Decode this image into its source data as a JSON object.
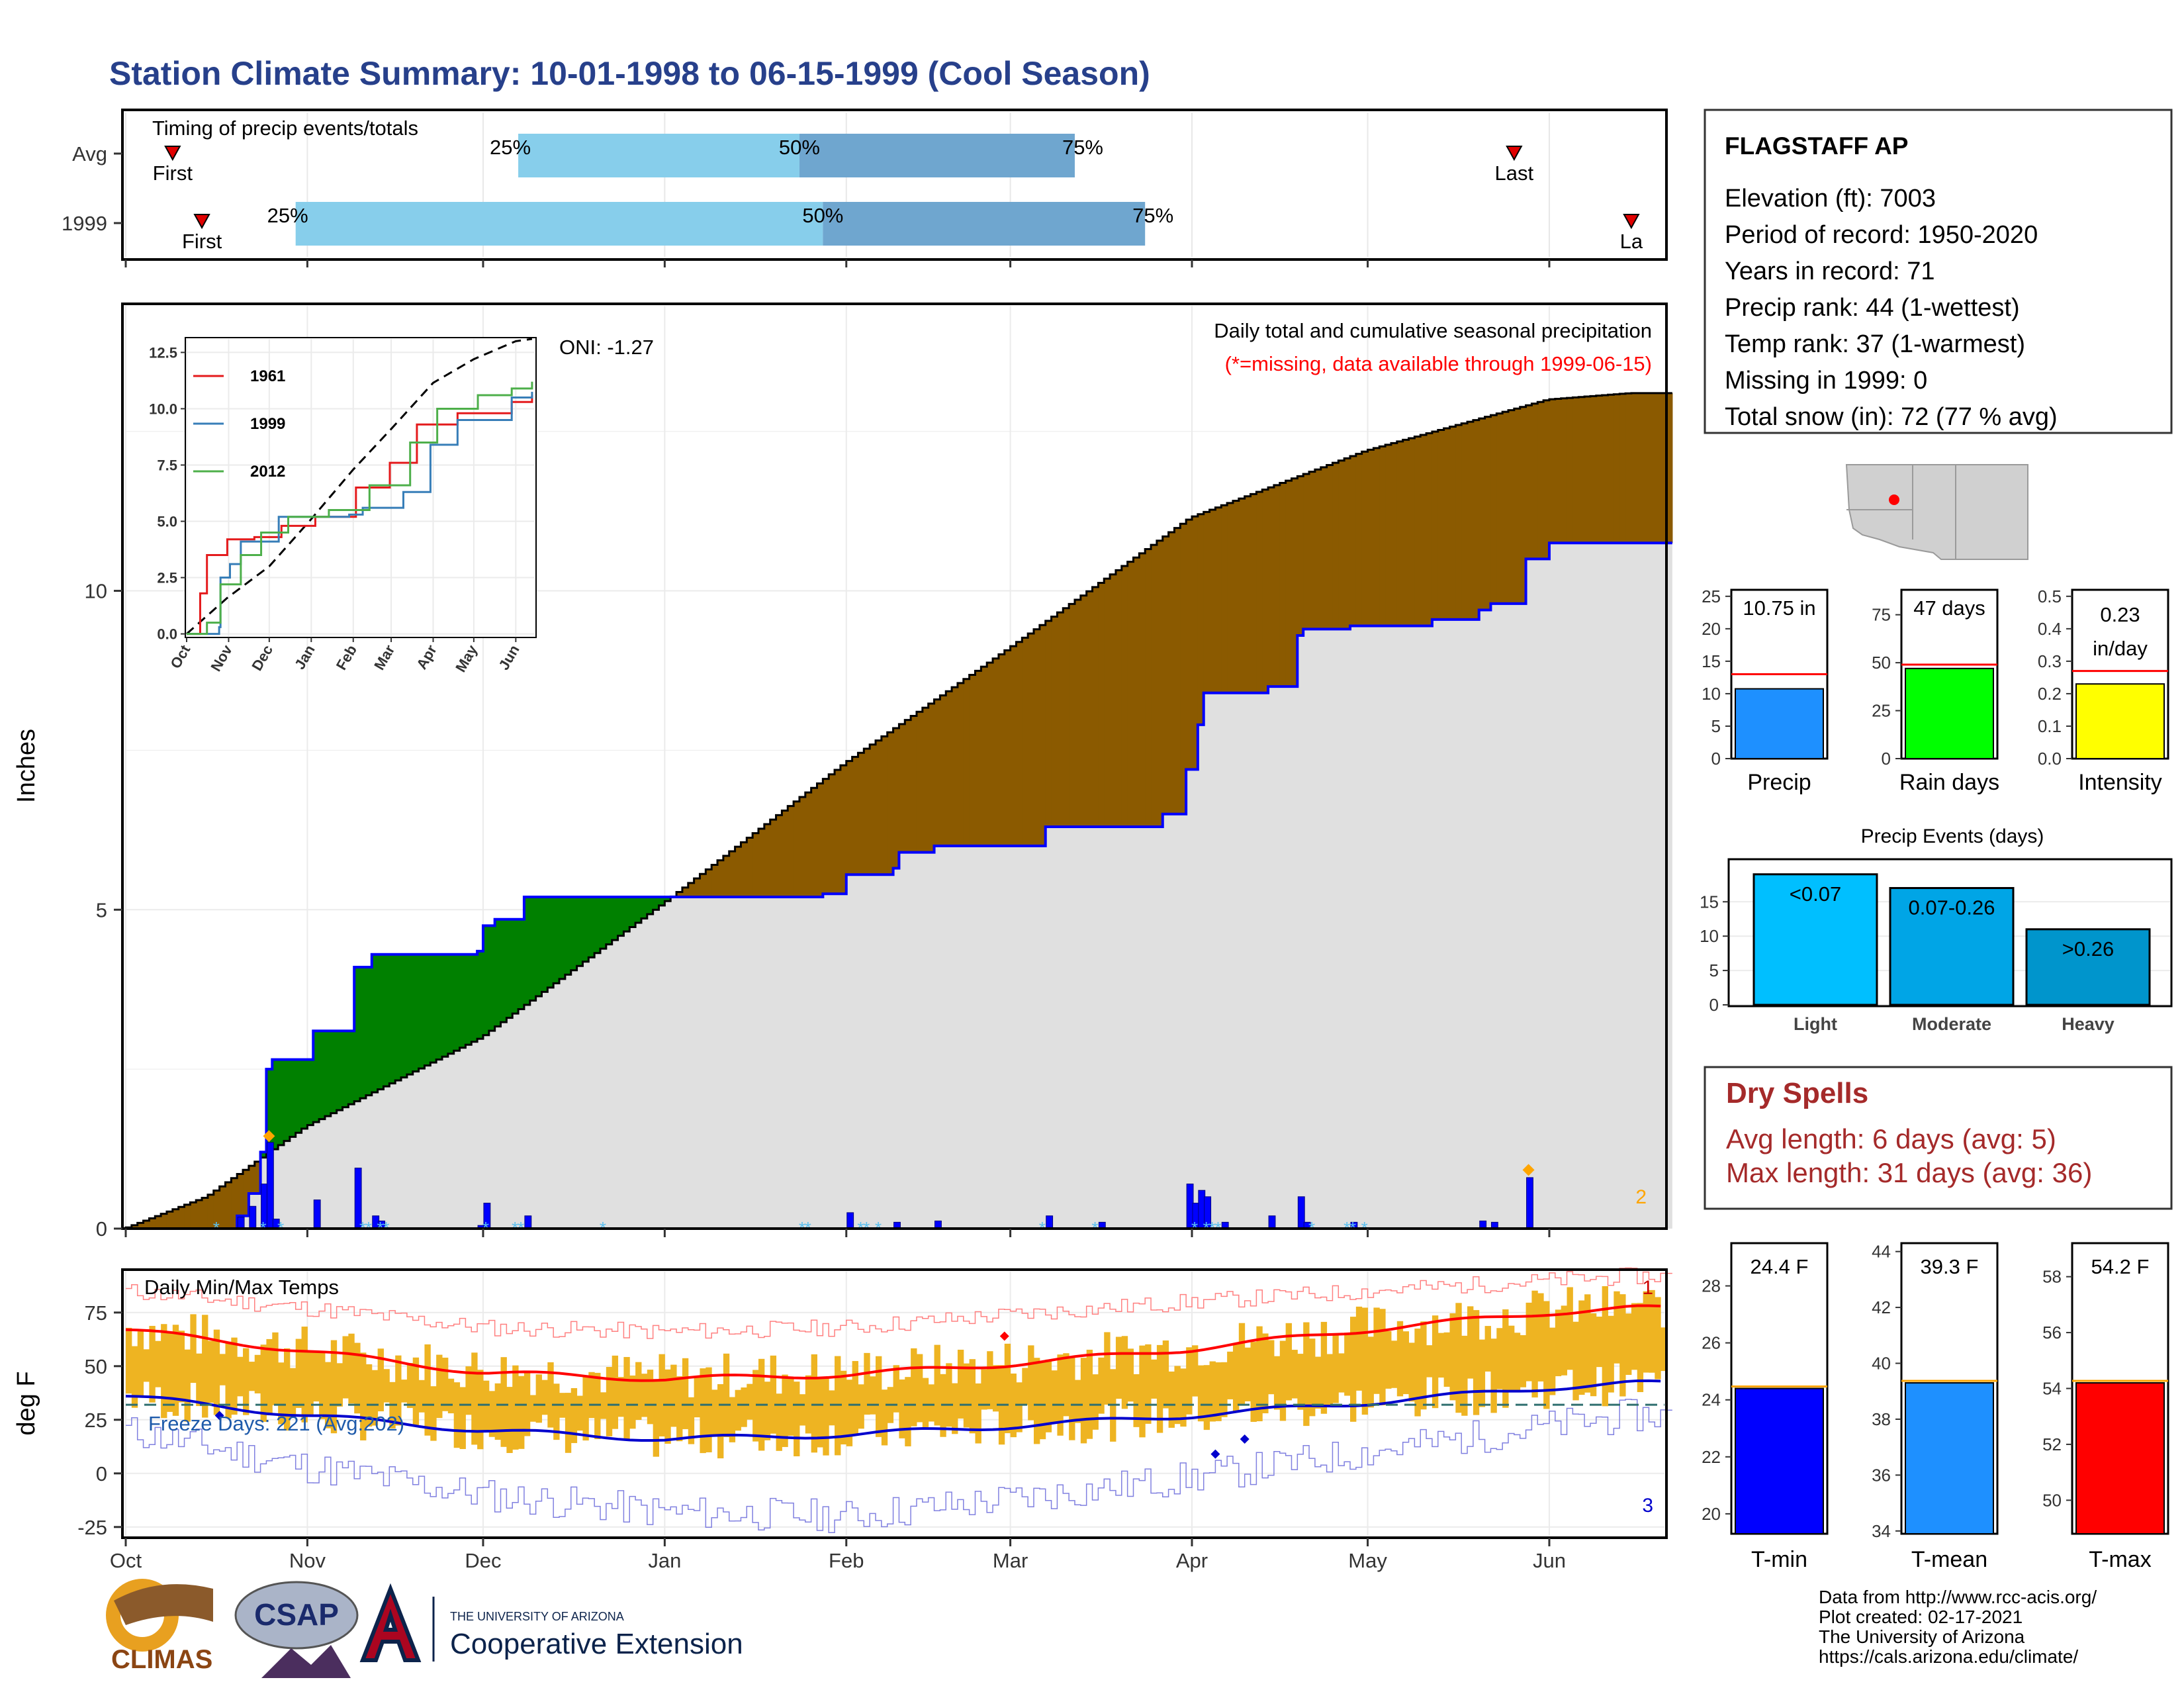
{
  "title": "Station Climate Summary: 10-01-1998 to 06-15-1999 (Cool Season)",
  "colors": {
    "title": "#27408B",
    "rank_bar_light": "#87CEEB",
    "rank_bar_dark": "#6FA6CF",
    "cum_current": "#E0E0E0",
    "cum_line": "#0000FF",
    "wet_fill": "#008000",
    "dry_fill": "#8B5A00",
    "daily_bar": "#0000FF",
    "bar_orange": "#FFA500",
    "temp_bar": "#EEB422",
    "tmax_line": "#FF0000",
    "tmin_line": "#0000CD",
    "dry_title": "#A52A2A"
  },
  "timing": {
    "title": "Timing of precip events/totals",
    "rows": [
      {
        "label": "Avg",
        "first_label": "First",
        "first_date": "1998-10-09",
        "last_label": "Last",
        "last_date": "1999-05-26",
        "q25": "1998-12-07",
        "q50": "1999-01-24",
        "q75": "1999-03-12",
        "q25_label": "25%",
        "q50_label": "50%",
        "q75_label": "75%"
      },
      {
        "label": "1999",
        "first_label": "First",
        "first_date": "1998-10-14",
        "last_label": "La",
        "last_date": "1999-06-15",
        "q25": "1998-10-30",
        "q50": "1999-01-28",
        "q75": "1999-03-24",
        "q25_label": "25%",
        "q50_label": "50%",
        "q75_label": "75%"
      }
    ]
  },
  "main_chart": {
    "type": "area",
    "subtitle": "Daily total and cumulative seasonal precipitation",
    "missing_note": "(*=missing, data available through 1999-06-15)",
    "oni": "ONI: -1.27",
    "ylabel": "Inches",
    "ylim": [
      0,
      14.5
    ],
    "yticks": [
      "0",
      "5",
      "10"
    ],
    "x_months": [
      "Oct",
      "Nov",
      "Dec",
      "Jan",
      "Feb",
      "Mar",
      "Apr",
      "May",
      "Jun"
    ],
    "x_month_dates": [
      "1998-10-01",
      "1998-11-01",
      "1998-12-01",
      "1999-01-01",
      "1999-02-01",
      "1999-03-01",
      "1999-04-01",
      "1999-05-01",
      "1999-06-01"
    ],
    "end_count": "2",
    "cumulative_current_steps": [
      [
        "1998-10-01",
        0
      ],
      [
        "1998-10-20",
        0.2
      ],
      [
        "1998-10-22",
        0.55
      ],
      [
        "1998-10-24",
        1.2
      ],
      [
        "1998-10-25",
        2.5
      ],
      [
        "1998-10-26",
        2.65
      ],
      [
        "1998-11-02",
        3.1
      ],
      [
        "1998-11-09",
        4.1
      ],
      [
        "1998-11-12",
        4.3
      ],
      [
        "1998-11-30",
        4.35
      ],
      [
        "1998-12-01",
        4.75
      ],
      [
        "1998-12-03",
        4.85
      ],
      [
        "1998-12-08",
        5.2
      ],
      [
        "1999-01-28",
        5.25
      ],
      [
        "1999-02-01",
        5.55
      ],
      [
        "1999-02-09",
        5.65
      ],
      [
        "1999-02-10",
        5.9
      ],
      [
        "1999-02-16",
        6.0
      ],
      [
        "1999-03-07",
        6.3
      ],
      [
        "1999-03-27",
        6.5
      ],
      [
        "1999-03-31",
        7.2
      ],
      [
        "1999-04-02",
        7.9
      ],
      [
        "1999-04-03",
        8.4
      ],
      [
        "1999-04-14",
        8.5
      ],
      [
        "1999-04-19",
        9.3
      ],
      [
        "1999-04-20",
        9.4
      ],
      [
        "1999-04-28",
        9.45
      ],
      [
        "1999-05-12",
        9.55
      ],
      [
        "1999-05-20",
        9.7
      ],
      [
        "1999-05-22",
        9.8
      ],
      [
        "1999-05-28",
        10.5
      ],
      [
        "1999-06-01",
        10.75
      ],
      [
        "1999-06-15",
        10.75
      ]
    ],
    "cumulative_avg_points": [
      [
        "1998-10-01",
        0
      ],
      [
        "1998-10-15",
        0.5
      ],
      [
        "1998-11-01",
        1.6
      ],
      [
        "1998-12-01",
        3.0
      ],
      [
        "1999-01-01",
        5.1
      ],
      [
        "1999-02-01",
        7.3
      ],
      [
        "1999-03-01",
        9.1
      ],
      [
        "1999-04-01",
        11.15
      ],
      [
        "1999-05-01",
        12.2
      ],
      [
        "1999-06-01",
        13.0
      ],
      [
        "1999-06-15",
        13.1
      ]
    ],
    "daily_precip": [
      [
        "1998-10-20",
        0.18
      ],
      [
        "1998-10-22",
        0.35
      ],
      [
        "1998-10-24",
        0.7
      ],
      [
        "1998-10-25",
        1.35
      ],
      [
        "1998-10-26",
        0.15
      ],
      [
        "1998-11-02",
        0.45
      ],
      [
        "1998-11-09",
        0.95
      ],
      [
        "1998-11-12",
        0.2
      ],
      [
        "1998-11-13",
        0.12
      ],
      [
        "1998-11-30",
        0.05
      ],
      [
        "1998-12-01",
        0.4
      ],
      [
        "1998-12-08",
        0.2
      ],
      [
        "1999-02-01",
        0.25
      ],
      [
        "1999-02-09",
        0.1
      ],
      [
        "1999-02-16",
        0.12
      ],
      [
        "1999-03-07",
        0.2
      ],
      [
        "1999-03-16",
        0.1
      ],
      [
        "1999-03-31",
        0.7
      ],
      [
        "1999-04-01",
        0.4
      ],
      [
        "1999-04-02",
        0.6
      ],
      [
        "1999-04-03",
        0.5
      ],
      [
        "1999-04-06",
        0.1
      ],
      [
        "1999-04-14",
        0.2
      ],
      [
        "1999-04-19",
        0.5
      ],
      [
        "1999-04-20",
        0.1
      ],
      [
        "1999-04-28",
        0.1
      ],
      [
        "1999-05-20",
        0.12
      ],
      [
        "1999-05-22",
        0.1
      ],
      [
        "1999-05-28",
        0.8
      ]
    ],
    "snow_dates": [
      "1998-10-16",
      "1998-10-24",
      "1998-10-27",
      "1998-11-10",
      "1998-11-11",
      "1998-11-13",
      "1998-11-14",
      "1998-12-01",
      "1998-12-06",
      "1998-12-07",
      "1998-12-21",
      "1999-01-24",
      "1999-01-25",
      "1999-02-03",
      "1999-02-04",
      "1999-02-06",
      "1999-03-06",
      "1999-03-15",
      "1999-04-01",
      "1999-04-03",
      "1999-04-04",
      "1999-04-05",
      "1999-04-21",
      "1999-04-27",
      "1999-04-28",
      "1999-04-30"
    ],
    "extreme_markers": [
      [
        "1998-10-25",
        1.45
      ],
      [
        "1999-05-28",
        0.92
      ]
    ]
  },
  "inset": {
    "type": "line",
    "ylim": [
      0,
      13
    ],
    "yticks": [
      "0.0",
      "2.5",
      "5.0",
      "7.5",
      "10.0",
      "12.5"
    ],
    "x_months": [
      "Oct",
      "Nov",
      "Dec",
      "Jan",
      "Feb",
      "Mar",
      "Apr",
      "May",
      "Jun"
    ],
    "series": [
      {
        "name": "1961",
        "color": "#E41A1C",
        "points": [
          [
            0,
            0
          ],
          [
            10,
            1.8
          ],
          [
            15,
            3.5
          ],
          [
            30,
            4.2
          ],
          [
            50,
            4.3
          ],
          [
            70,
            4.8
          ],
          [
            95,
            5.2
          ],
          [
            125,
            6.5
          ],
          [
            150,
            7.6
          ],
          [
            170,
            9.3
          ],
          [
            200,
            9.8
          ],
          [
            240,
            10.3
          ],
          [
            255,
            10.6
          ]
        ]
      },
      {
        "name": "1999",
        "color": "#377EB8",
        "points": [
          [
            0,
            0
          ],
          [
            24,
            0.3
          ],
          [
            25,
            2.5
          ],
          [
            32,
            3.1
          ],
          [
            40,
            4.1
          ],
          [
            68,
            5.2
          ],
          [
            120,
            5.3
          ],
          [
            130,
            5.6
          ],
          [
            160,
            6.3
          ],
          [
            180,
            8.4
          ],
          [
            200,
            9.5
          ],
          [
            240,
            10.5
          ],
          [
            255,
            10.75
          ]
        ]
      },
      {
        "name": "2012",
        "color": "#4DAF4A",
        "points": [
          [
            0,
            0
          ],
          [
            15,
            0.5
          ],
          [
            25,
            2.2
          ],
          [
            40,
            3.5
          ],
          [
            55,
            4.5
          ],
          [
            75,
            5.2
          ],
          [
            105,
            5.5
          ],
          [
            135,
            6.6
          ],
          [
            165,
            8.5
          ],
          [
            185,
            10.0
          ],
          [
            215,
            10.6
          ],
          [
            240,
            10.9
          ],
          [
            255,
            11.2
          ]
        ]
      }
    ],
    "avg_points": [
      [
        0,
        0
      ],
      [
        30,
        1.6
      ],
      [
        61,
        3.0
      ],
      [
        92,
        5.1
      ],
      [
        123,
        7.3
      ],
      [
        151,
        9.1
      ],
      [
        182,
        11.15
      ],
      [
        212,
        12.2
      ],
      [
        243,
        13.0
      ],
      [
        255,
        13.1
      ]
    ]
  },
  "temps": {
    "title": "Daily Min/Max Temps",
    "ylabel": "deg F",
    "ylim": [
      -30,
      95
    ],
    "yticks": [
      "-25",
      "0",
      "25",
      "50",
      "75"
    ],
    "x_months": [
      "Oct",
      "Nov",
      "Dec",
      "Jan",
      "Feb",
      "Mar",
      "Apr",
      "May",
      "Jun"
    ],
    "freeze_text": "Freeze Days: 221 (Avg:202)",
    "freeze_line": 32,
    "count_high": "1",
    "count_low": "3",
    "avg_tmax_points": [
      [
        0,
        67
      ],
      [
        31,
        57
      ],
      [
        61,
        47
      ],
      [
        92,
        44
      ],
      [
        123,
        46
      ],
      [
        151,
        51
      ],
      [
        182,
        58
      ],
      [
        212,
        67
      ],
      [
        243,
        75
      ],
      [
        257,
        77
      ]
    ],
    "avg_tmin_points": [
      [
        0,
        36
      ],
      [
        31,
        27
      ],
      [
        61,
        20
      ],
      [
        92,
        16
      ],
      [
        123,
        18
      ],
      [
        151,
        22
      ],
      [
        182,
        27
      ],
      [
        212,
        33
      ],
      [
        243,
        40
      ],
      [
        257,
        42
      ]
    ],
    "rec_high_points": [
      [
        0,
        85
      ],
      [
        31,
        77
      ],
      [
        61,
        68
      ],
      [
        92,
        66
      ],
      [
        123,
        68
      ],
      [
        151,
        74
      ],
      [
        182,
        80
      ],
      [
        212,
        85
      ],
      [
        243,
        90
      ],
      [
        257,
        92
      ]
    ],
    "rec_low_points": [
      [
        0,
        20
      ],
      [
        31,
        3
      ],
      [
        61,
        -10
      ],
      [
        92,
        -18
      ],
      [
        123,
        -20
      ],
      [
        151,
        -12
      ],
      [
        182,
        -2
      ],
      [
        212,
        10
      ],
      [
        243,
        22
      ],
      [
        257,
        27
      ]
    ],
    "record_markers": [
      [
        150,
        64,
        "#FF0000"
      ],
      [
        16,
        27,
        "#0000CD"
      ],
      [
        186,
        9,
        "#0000CD"
      ],
      [
        191,
        16,
        "#0000CD"
      ]
    ]
  },
  "station": {
    "name": "FLAGSTAFF AP",
    "lines": [
      "Elevation (ft): 7003",
      "Period of record: 1950-2020",
      "Years in record: 71",
      "Precip rank: 44 (1-wettest)",
      "Temp rank: 37 (1-warmest)",
      "Missing in 1999: 0",
      "Total snow (in): 72 (77 % avg)"
    ]
  },
  "stat_bars": [
    {
      "label": "Precip",
      "value_text": "10.75 in",
      "value": 10.75,
      "avg": 13.0,
      "ymax": 26,
      "yticks": [
        0,
        5,
        10,
        15,
        20,
        25
      ],
      "color": "#1E90FF"
    },
    {
      "label": "Rain days",
      "value_text": "47 days",
      "value": 47,
      "avg": 49,
      "ymax": 88,
      "yticks": [
        0,
        25,
        50,
        75
      ],
      "color": "#00FF00"
    },
    {
      "label": "Intensity",
      "value_text_1": "0.23",
      "value_text_2": "in/day",
      "value": 0.23,
      "avg": 0.27,
      "ymax": 0.52,
      "yticks": [
        0.0,
        0.1,
        0.2,
        0.3,
        0.4,
        0.5
      ],
      "color": "#FFFF00"
    }
  ],
  "precip_events": {
    "type": "bar",
    "title": "Precip Events (days)",
    "categories": [
      "Light",
      "Moderate",
      "Heavy"
    ],
    "bar_labels": [
      "<0.07",
      "0.07-0.26",
      ">0.26"
    ],
    "values": [
      19,
      17,
      11
    ],
    "yticks": [
      0,
      5,
      10,
      15
    ],
    "ymax": 21,
    "colors": [
      "#00BFFF",
      "#00A5E6",
      "#0095CC"
    ]
  },
  "dry_spells": {
    "title": "Dry Spells",
    "avg_length": "Avg length: 6 days (avg: 5)",
    "max_length": "Max length: 31 days (avg: 36)"
  },
  "temp_bars": [
    {
      "label": "T-min",
      "value_text": "24.4 F",
      "value": 24.4,
      "ymin": 19.3,
      "ymax": 29.5,
      "yticks": [
        20,
        22,
        24,
        26,
        28
      ],
      "color": "#0000FF"
    },
    {
      "label": "T-mean",
      "value_text": "39.3 F",
      "value": 39.3,
      "ymin": 33.9,
      "ymax": 44.3,
      "yticks": [
        34,
        36,
        38,
        40,
        42,
        44
      ],
      "color": "#1E90FF"
    },
    {
      "label": "T-max",
      "value_text": "54.2 F",
      "value": 54.2,
      "ymin": 48.8,
      "ymax": 59.2,
      "yticks": [
        50,
        52,
        54,
        56,
        58
      ],
      "color": "#FF0000"
    }
  ],
  "credits": [
    "Data from http://www.rcc-acis.org/",
    "Plot created: 02-17-2021",
    "The University of Arizona",
    "https://cals.arizona.edu/climate/"
  ],
  "logos": {
    "climas": "CLIMAS",
    "csap": "CSAP",
    "ua_top": "THE UNIVERSITY OF ARIZONA",
    "ua_main": "Cooperative Extension"
  }
}
